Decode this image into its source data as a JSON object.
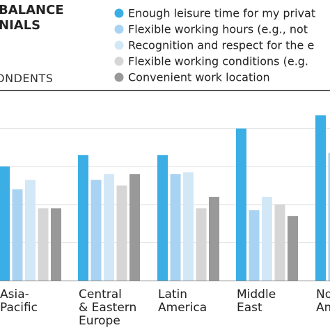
{
  "chart_data": {
    "type": "bar",
    "title_lines": [
      "BALANCE",
      "NIALS"
    ],
    "subtitle": "ONDENTS",
    "categories": [
      [
        "Asia-",
        "Pacific"
      ],
      [
        "Central",
        "& Eastern",
        "Europe"
      ],
      [
        "Latin",
        "America"
      ],
      [
        "Middle",
        "East"
      ],
      [
        "No",
        "Am"
      ]
    ],
    "series": [
      {
        "name": "Enough leisure time for my privat",
        "color": "#3aaee5",
        "values": [
          60,
          66,
          66,
          80,
          87
        ]
      },
      {
        "name": "Flexible working hours (e.g., not",
        "color": "#a9d3f2",
        "values": [
          48,
          53,
          56,
          37,
          67
        ]
      },
      {
        "name": "Recognition and respect for the e",
        "color": "#d3e8f7",
        "values": [
          53,
          56,
          57,
          44,
          0
        ]
      },
      {
        "name": "Flexible working conditions (e.g.",
        "color": "#d6d6d6",
        "values": [
          38,
          50,
          38,
          40,
          0
        ]
      },
      {
        "name": "Convenient work location",
        "color": "#999999",
        "values": [
          38,
          56,
          44,
          34,
          0
        ]
      }
    ],
    "ylim": [
      0,
      100
    ],
    "grid": true,
    "legend_position": "top-right"
  }
}
